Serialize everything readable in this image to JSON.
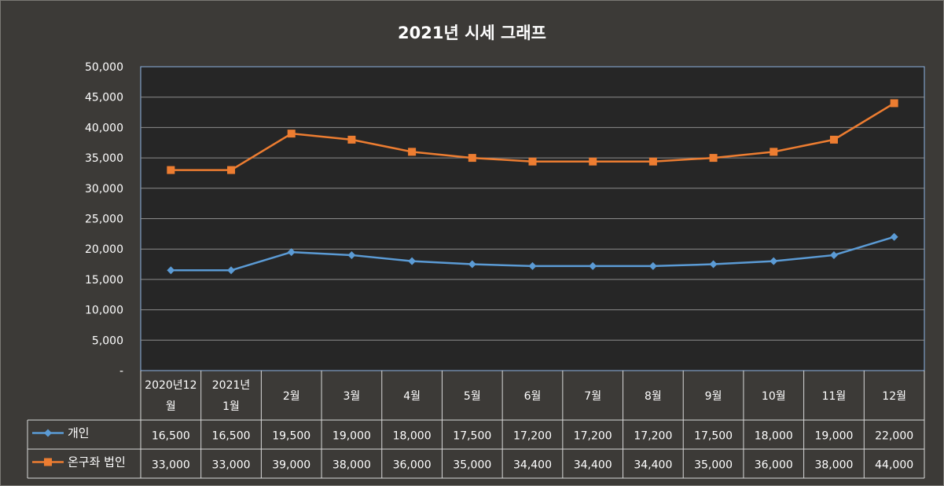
{
  "chart_data": {
    "type": "line",
    "title": "2021년 시세 그래프",
    "categories": [
      [
        "2020년12",
        "월"
      ],
      [
        "2021년",
        "1월"
      ],
      [
        "2월"
      ],
      [
        "3월"
      ],
      [
        "4월"
      ],
      [
        "5월"
      ],
      [
        "6월"
      ],
      [
        "7월"
      ],
      [
        "8월"
      ],
      [
        "9월"
      ],
      [
        "10월"
      ],
      [
        "11월"
      ],
      [
        "12월"
      ]
    ],
    "ylim": [
      0,
      50000
    ],
    "yticks": [
      "-",
      "5,000",
      "10,000",
      "15,000",
      "20,000",
      "25,000",
      "30,000",
      "35,000",
      "40,000",
      "45,000",
      "50,000"
    ],
    "grid": true,
    "data_table": true,
    "series": [
      {
        "name": "개인",
        "color": "#5b9bd5",
        "marker": "diamond",
        "values": [
          16500,
          16500,
          19500,
          19000,
          18000,
          17500,
          17200,
          17200,
          17200,
          17500,
          18000,
          19000,
          22000
        ],
        "labels": [
          "16,500",
          "16,500",
          "19,500",
          "19,000",
          "18,000",
          "17,500",
          "17,200",
          "17,200",
          "17,200",
          "17,500",
          "18,000",
          "19,000",
          "22,000"
        ]
      },
      {
        "name": "온구좌 법인",
        "color": "#ed7d31",
        "marker": "square",
        "values": [
          33000,
          33000,
          39000,
          38000,
          36000,
          35000,
          34400,
          34400,
          34400,
          35000,
          36000,
          38000,
          44000
        ],
        "labels": [
          "33,000",
          "33,000",
          "39,000",
          "38,000",
          "36,000",
          "35,000",
          "34,400",
          "34,400",
          "34,400",
          "35,000",
          "36,000",
          "38,000",
          "44,000"
        ]
      }
    ]
  }
}
